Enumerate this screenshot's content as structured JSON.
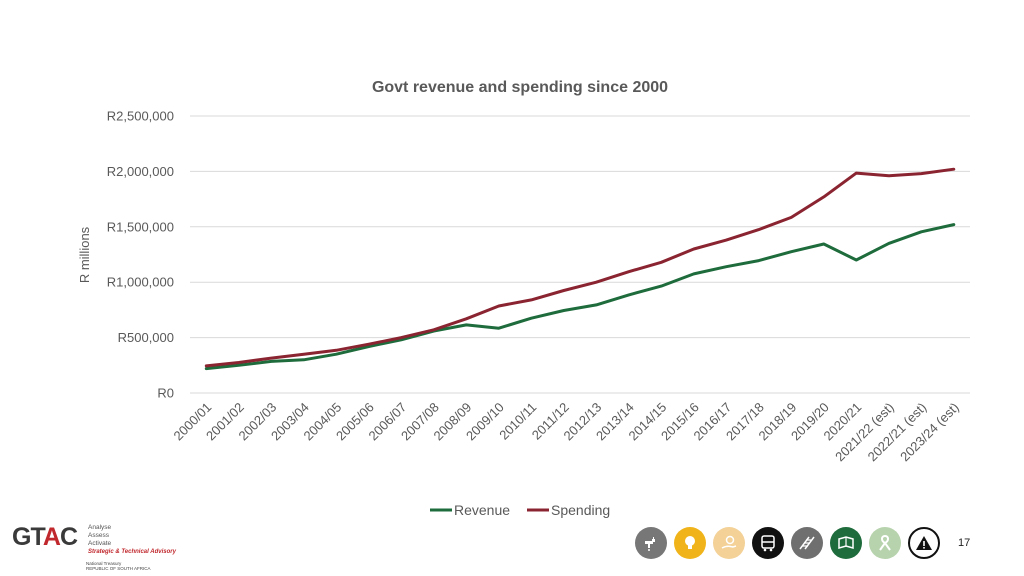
{
  "colors": {
    "revenue": "#1e6b3c",
    "spending": "#8a2430",
    "text": "#595959",
    "grid": "#d9d9d9"
  },
  "chart_data": {
    "type": "line",
    "title": "Govt revenue and spending since 2000",
    "xlabel": "",
    "ylabel": "R millions",
    "categories": [
      "2000/01",
      "2001/02",
      "2002/03",
      "2003/04",
      "2004/05",
      "2005/06",
      "2006/07",
      "2007/08",
      "2008/09",
      "2009/10",
      "2010/11",
      "2011/12",
      "2012/13",
      "2013/14",
      "2014/15",
      "2015/16",
      "2016/17",
      "2017/18",
      "2018/19",
      "2019/20",
      "2020/21",
      "2021/22 (est)",
      "2022/21 (est)",
      "2023/24 (est)"
    ],
    "series": [
      {
        "name": "Revenue",
        "color": "#1e6b3c",
        "values": [
          220000,
          250000,
          285000,
          300000,
          350000,
          420000,
          480000,
          560000,
          615000,
          585000,
          675000,
          745000,
          795000,
          885000,
          965000,
          1075000,
          1140000,
          1195000,
          1275000,
          1345000,
          1200000,
          1350000,
          1455000,
          1520000
        ]
      },
      {
        "name": "Spending",
        "color": "#8a2430",
        "values": [
          245000,
          275000,
          315000,
          350000,
          385000,
          440000,
          500000,
          570000,
          670000,
          785000,
          840000,
          925000,
          1000000,
          1095000,
          1180000,
          1300000,
          1380000,
          1475000,
          1585000,
          1770000,
          1985000,
          1960000,
          1980000,
          2020000
        ]
      }
    ],
    "ylim": [
      0,
      2500000
    ],
    "yticks": [
      0,
      500000,
      1000000,
      1500000,
      2000000,
      2500000
    ],
    "ytick_labels": [
      "R0",
      "R500,000",
      "R1,000,000",
      "R1,500,000",
      "R2,000,000",
      "R2,500,000"
    ],
    "grid": true,
    "legend_position": "bottom"
  },
  "footer": {
    "logo": {
      "mark_left": "GT",
      "mark_accent": "A",
      "mark_right": "C",
      "words": [
        "Analyse",
        "Assess",
        "Activate"
      ],
      "tagline": "Strategic & Technical Advisory",
      "sub_lines": [
        "National Treasury",
        "REPUBLIC OF SOUTH AFRICA"
      ]
    },
    "icons": [
      {
        "name": "water-tap-icon",
        "bg": "#777777",
        "fg": "#ffffff",
        "border": "none"
      },
      {
        "name": "light-bulb-icon",
        "bg": "#f0b41a",
        "fg": "#ffffff",
        "border": "none"
      },
      {
        "name": "hand-coins-icon",
        "bg": "#f3d197",
        "fg": "#ffffff",
        "border": "none"
      },
      {
        "name": "bus-icon",
        "bg": "#111111",
        "fg": "#ffffff",
        "border": "none"
      },
      {
        "name": "railway-icon",
        "bg": "#6f6f6f",
        "fg": "#ffffff",
        "border": "none"
      },
      {
        "name": "book-icon",
        "bg": "#1e6b3c",
        "fg": "#ffffff",
        "border": "none"
      },
      {
        "name": "awareness-ribbon-icon",
        "bg": "#b7d3ad",
        "fg": "#ffffff",
        "border": "none"
      },
      {
        "name": "warning-sign-icon",
        "bg": "#ffffff",
        "fg": "#111111",
        "border": "2px solid #111111"
      }
    ],
    "page_number": "17"
  }
}
